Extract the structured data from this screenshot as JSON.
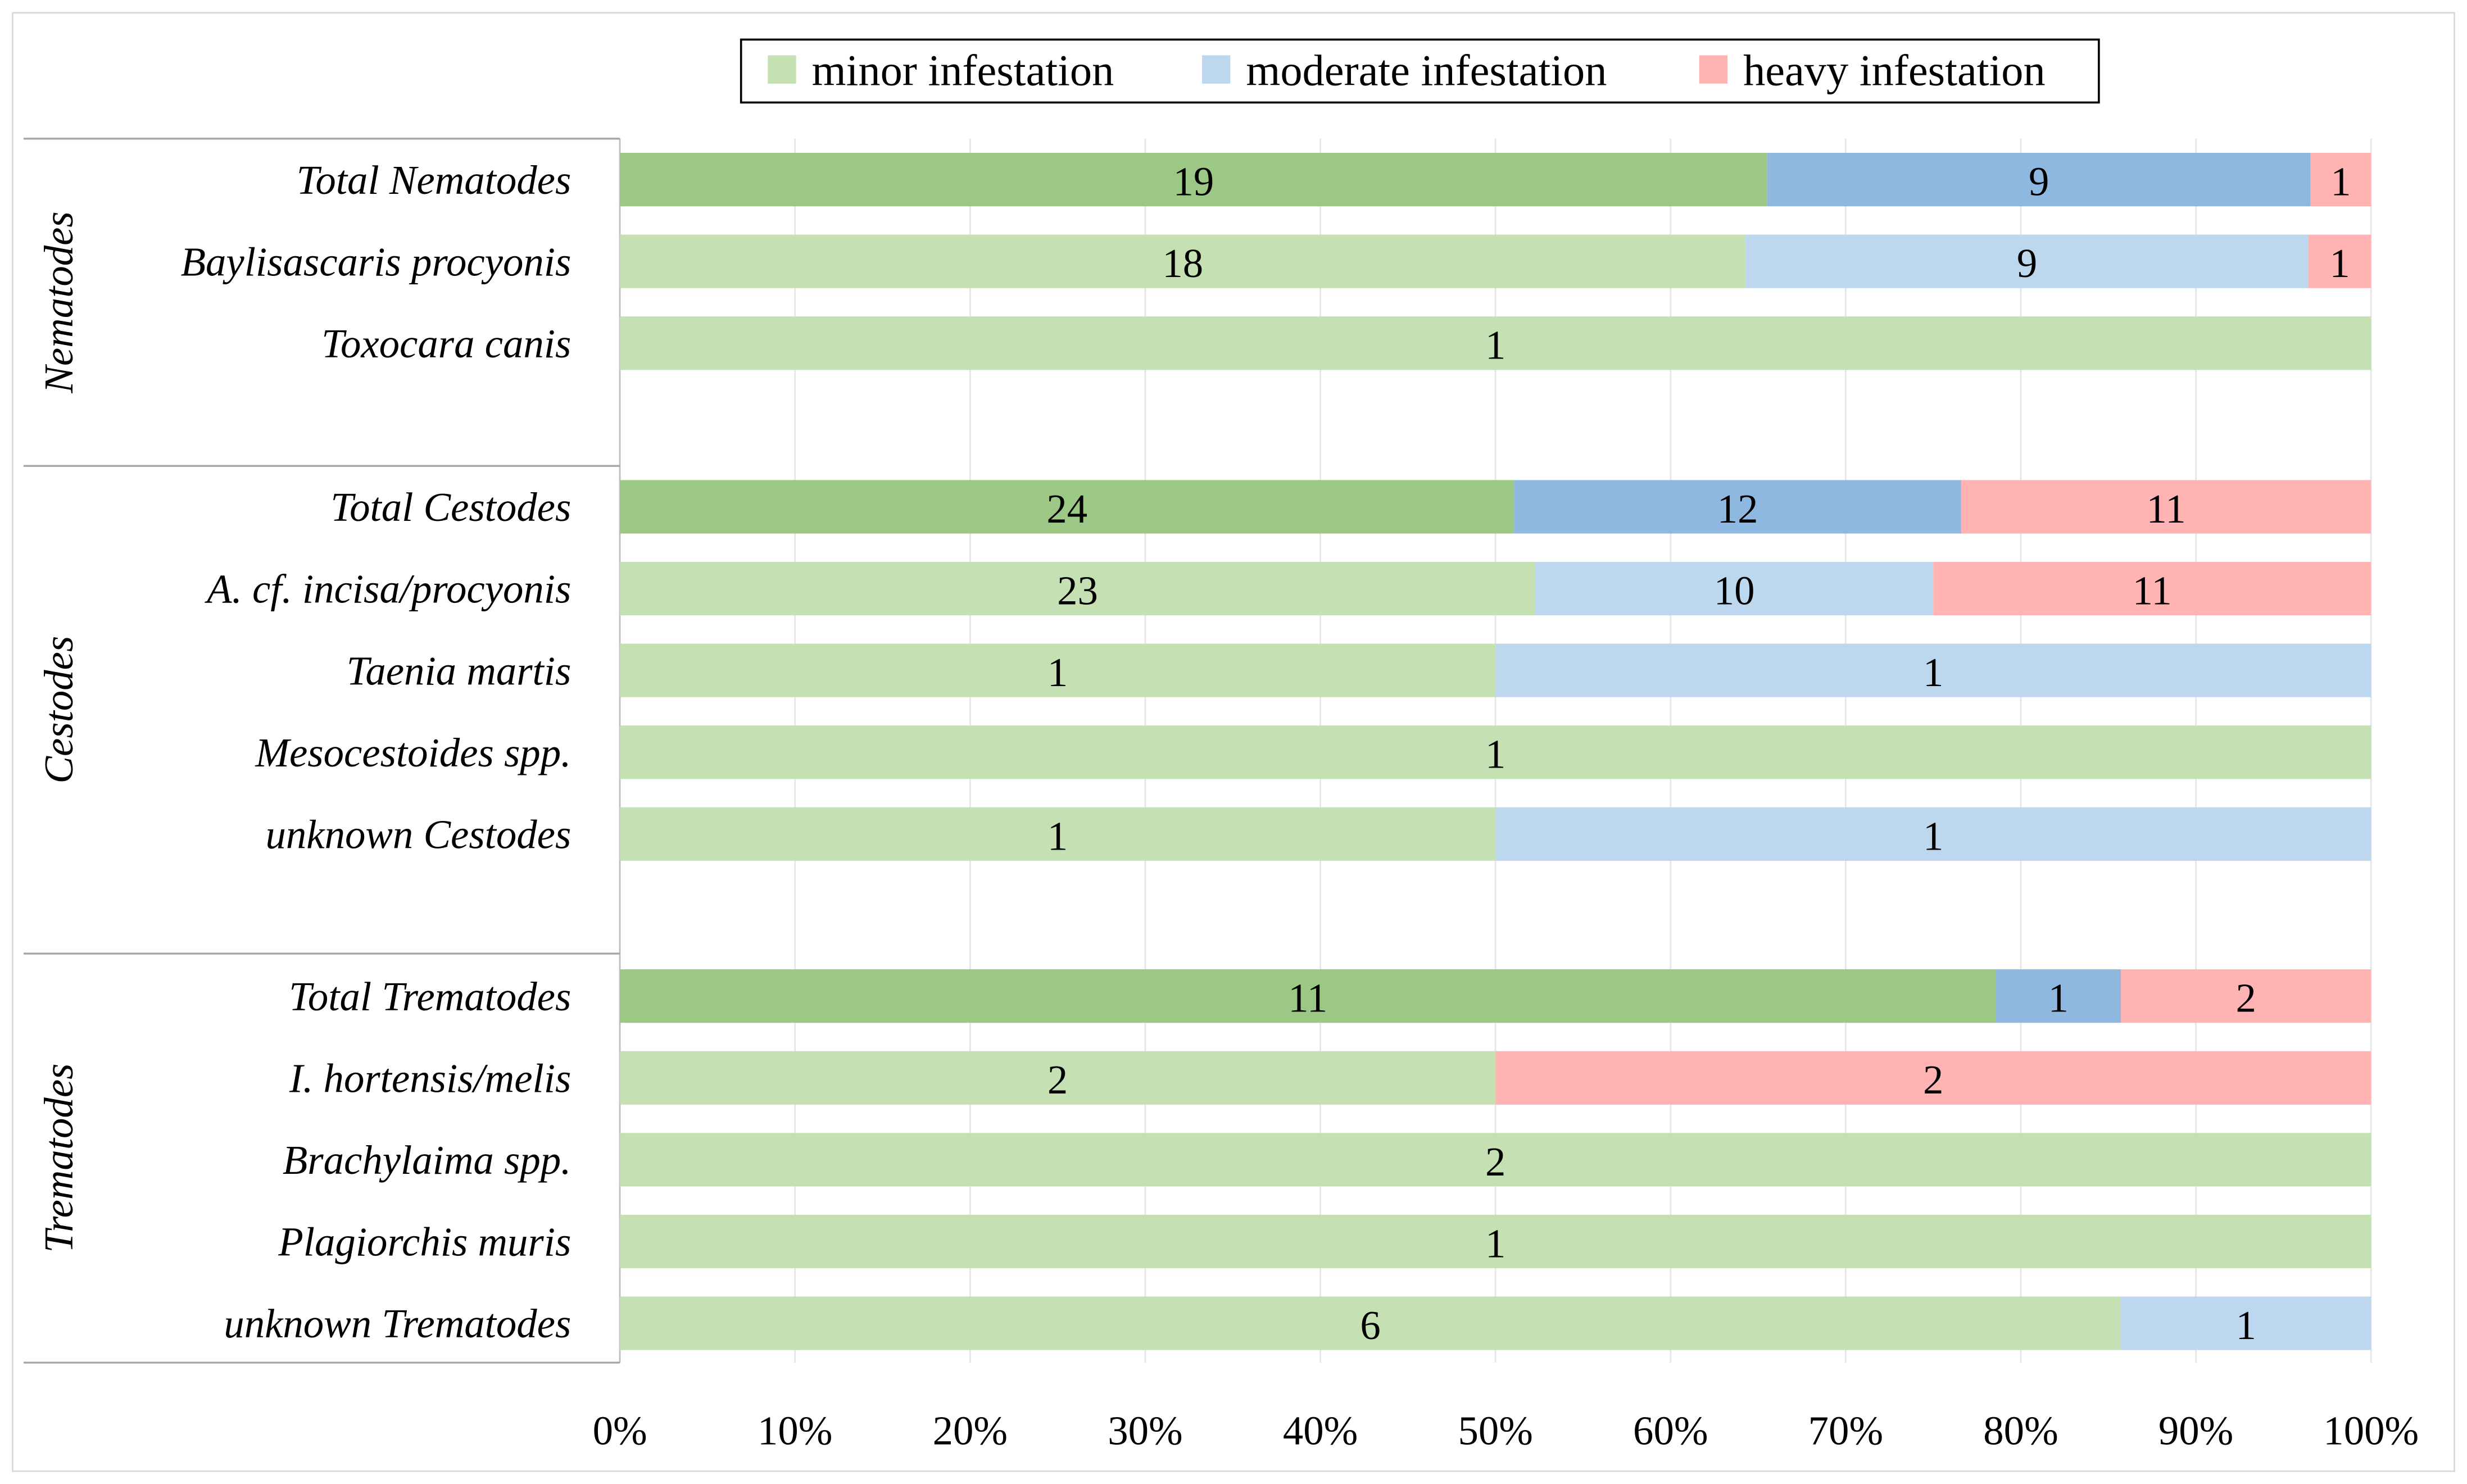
{
  "chart_data": {
    "type": "bar",
    "orientation": "horizontal",
    "stacked": "percent",
    "legend": {
      "position": "top",
      "entries": [
        "minor infestation",
        "moderate infestation",
        "heavy infestation"
      ]
    },
    "series_names": [
      "minor infestation",
      "moderate infestation",
      "heavy infestation"
    ],
    "colors": {
      "minor": "#c5e0b3",
      "moderate": "#bdd7ee",
      "heavy": "#ffb3b3",
      "minor_total": "#9dc785",
      "moderate_total": "#8fb8e1",
      "heavy_total": "#ffb3b3"
    },
    "groups": [
      {
        "name": "Nematodes",
        "rows": [
          {
            "label": "Total Nematodes",
            "total": true,
            "values": [
              19,
              9,
              1
            ]
          },
          {
            "label": "Baylisascaris procyonis",
            "total": false,
            "values": [
              18,
              9,
              1
            ]
          },
          {
            "label": "Toxocara canis",
            "total": false,
            "values": [
              1,
              0,
              0
            ]
          }
        ]
      },
      {
        "name": "Cestodes",
        "rows": [
          {
            "label": "Total Cestodes",
            "total": true,
            "values": [
              24,
              12,
              11
            ]
          },
          {
            "label": "A. cf. incisa/procyonis",
            "total": false,
            "values": [
              23,
              10,
              11
            ]
          },
          {
            "label": "Taenia martis",
            "total": false,
            "values": [
              1,
              1,
              0
            ]
          },
          {
            "label": "Mesocestoides spp.",
            "total": false,
            "values": [
              1,
              0,
              0
            ]
          },
          {
            "label": "unknown Cestodes",
            "total": false,
            "values": [
              1,
              1,
              0
            ]
          }
        ]
      },
      {
        "name": "Trematodes",
        "rows": [
          {
            "label": "Total Trematodes",
            "total": true,
            "values": [
              11,
              1,
              2
            ]
          },
          {
            "label": "I. hortensis/melis",
            "total": false,
            "values": [
              2,
              0,
              2
            ]
          },
          {
            "label": "Brachylaima spp.",
            "total": false,
            "values": [
              2,
              0,
              0
            ]
          },
          {
            "label": "Plagiorchis muris",
            "total": false,
            "values": [
              1,
              0,
              0
            ]
          },
          {
            "label": "unknown Trematodes",
            "total": false,
            "values": [
              6,
              1,
              0
            ]
          }
        ]
      }
    ],
    "x_ticks": [
      "0%",
      "10%",
      "20%",
      "30%",
      "40%",
      "50%",
      "60%",
      "70%",
      "80%",
      "90%",
      "100%"
    ],
    "xlim": [
      0,
      100
    ],
    "grid": true,
    "title": "",
    "xlabel": "",
    "ylabel": ""
  }
}
